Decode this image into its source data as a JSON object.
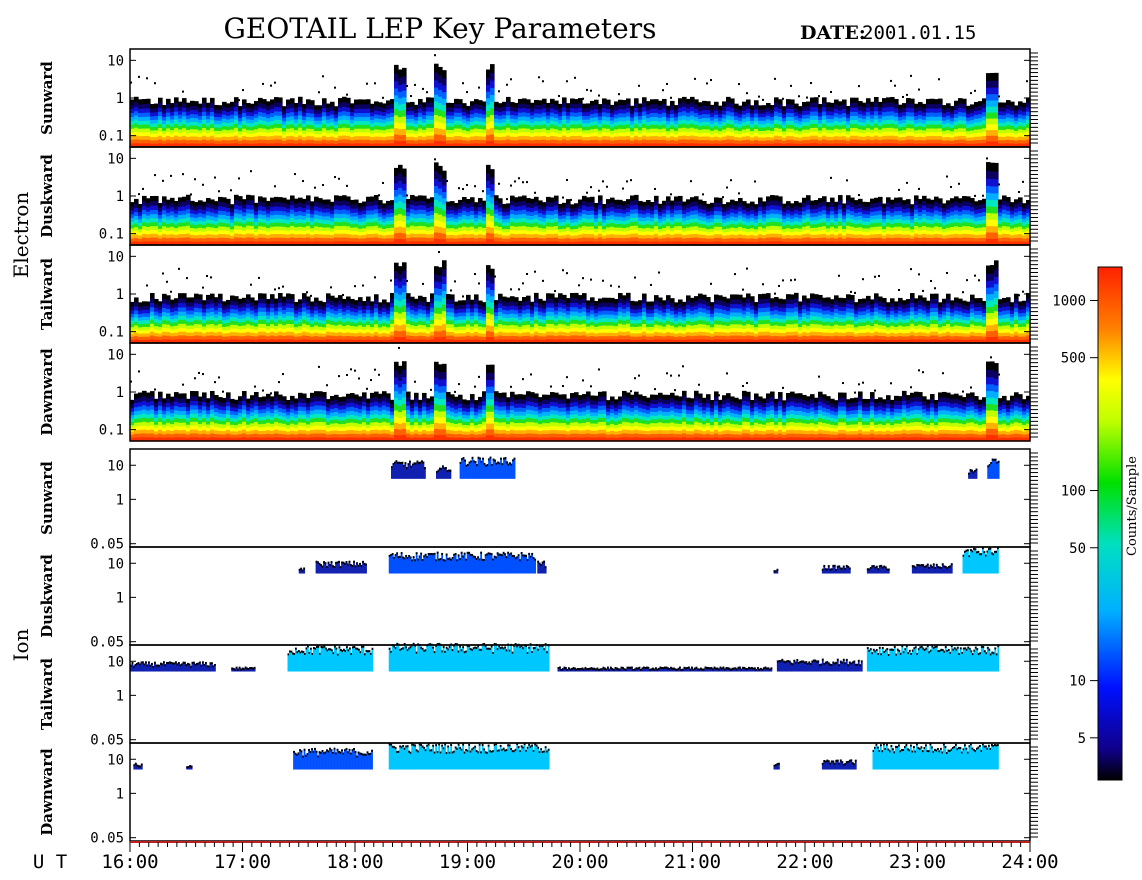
{
  "title": "GEOTAIL LEP Key Parameters",
  "date_label": "DATE:",
  "date_value": "2001.01.15",
  "ut_label": "U T",
  "colorbar": {
    "label": "Counts/Sample",
    "ticks": [
      "1000",
      "500",
      "100",
      "50",
      "10",
      "5"
    ],
    "tick_values": [
      1000,
      500,
      100,
      50,
      10,
      5
    ],
    "range": [
      3,
      1500
    ],
    "scale": "log"
  },
  "chart_data": {
    "type": "heatmap",
    "x_ticks": [
      "16:00",
      "17:00",
      "18:00",
      "19:00",
      "20:00",
      "21:00",
      "22:00",
      "23:00",
      "24:00"
    ],
    "x_range": [
      16,
      24
    ],
    "yscale": "log",
    "groups": [
      {
        "name": "Electron",
        "ylim": [
          0.05,
          20
        ],
        "y_ticks": [
          "10",
          "1",
          "0.1"
        ],
        "y_tick_values": [
          10,
          1,
          0.1
        ],
        "panels": [
          {
            "name": "Sunward",
            "bursts": [
              18.4,
              18.75,
              19.2,
              23.65
            ],
            "level": 0.6
          },
          {
            "name": "Duskward",
            "bursts": [
              18.4,
              18.75,
              19.2,
              23.65
            ],
            "level": 0.6
          },
          {
            "name": "Tailward",
            "bursts": [
              18.4,
              18.75,
              19.2,
              23.65
            ],
            "level": 0.6
          },
          {
            "name": "Dawnward",
            "bursts": [
              18.4,
              18.75,
              19.2,
              23.65
            ],
            "level": 0.6
          }
        ]
      },
      {
        "name": "Ion",
        "ylim": [
          0.04,
          30
        ],
        "y_ticks": [
          "10",
          "1",
          "0.05"
        ],
        "y_tick_values": [
          10,
          1,
          0.05
        ],
        "panels": [
          {
            "name": "Sunward",
            "segments": [
              [
                18.32,
                18.62,
                4,
                14
              ],
              [
                18.72,
                18.85,
                4,
                10
              ],
              [
                18.93,
                19.42,
                4,
                18
              ],
              [
                23.45,
                23.52,
                4,
                8
              ],
              [
                23.62,
                23.72,
                4,
                16
              ]
            ]
          },
          {
            "name": "Duskward",
            "segments": [
              [
                17.5,
                17.55,
                5,
                8
              ],
              [
                17.65,
                18.1,
                5,
                12
              ],
              [
                18.3,
                19.6,
                5,
                22
              ],
              [
                19.62,
                19.7,
                5,
                12
              ],
              [
                21.72,
                21.75,
                5,
                7
              ],
              [
                22.15,
                22.4,
                5,
                9
              ],
              [
                22.55,
                22.75,
                5,
                9
              ],
              [
                22.95,
                23.3,
                5,
                10
              ],
              [
                23.4,
                23.72,
                5,
                30
              ]
            ]
          },
          {
            "name": "Tailward",
            "segments": [
              [
                16.0,
                16.75,
                5,
                10
              ],
              [
                16.9,
                17.1,
                5,
                7
              ],
              [
                17.4,
                18.15,
                5,
                30
              ],
              [
                18.3,
                19.72,
                5,
                35
              ],
              [
                19.8,
                21.7,
                5,
                7
              ],
              [
                21.75,
                22.5,
                5,
                12
              ],
              [
                22.55,
                23.72,
                5,
                30
              ]
            ]
          },
          {
            "name": "Dawnward",
            "segments": [
              [
                16.03,
                16.1,
                5,
                8
              ],
              [
                16.5,
                16.55,
                5,
                7
              ],
              [
                17.45,
                18.15,
                5,
                22
              ],
              [
                18.3,
                19.72,
                5,
                30
              ],
              [
                21.72,
                21.76,
                5,
                8
              ],
              [
                22.15,
                22.45,
                5,
                10
              ],
              [
                22.6,
                23.72,
                5,
                30
              ]
            ]
          }
        ]
      }
    ]
  }
}
